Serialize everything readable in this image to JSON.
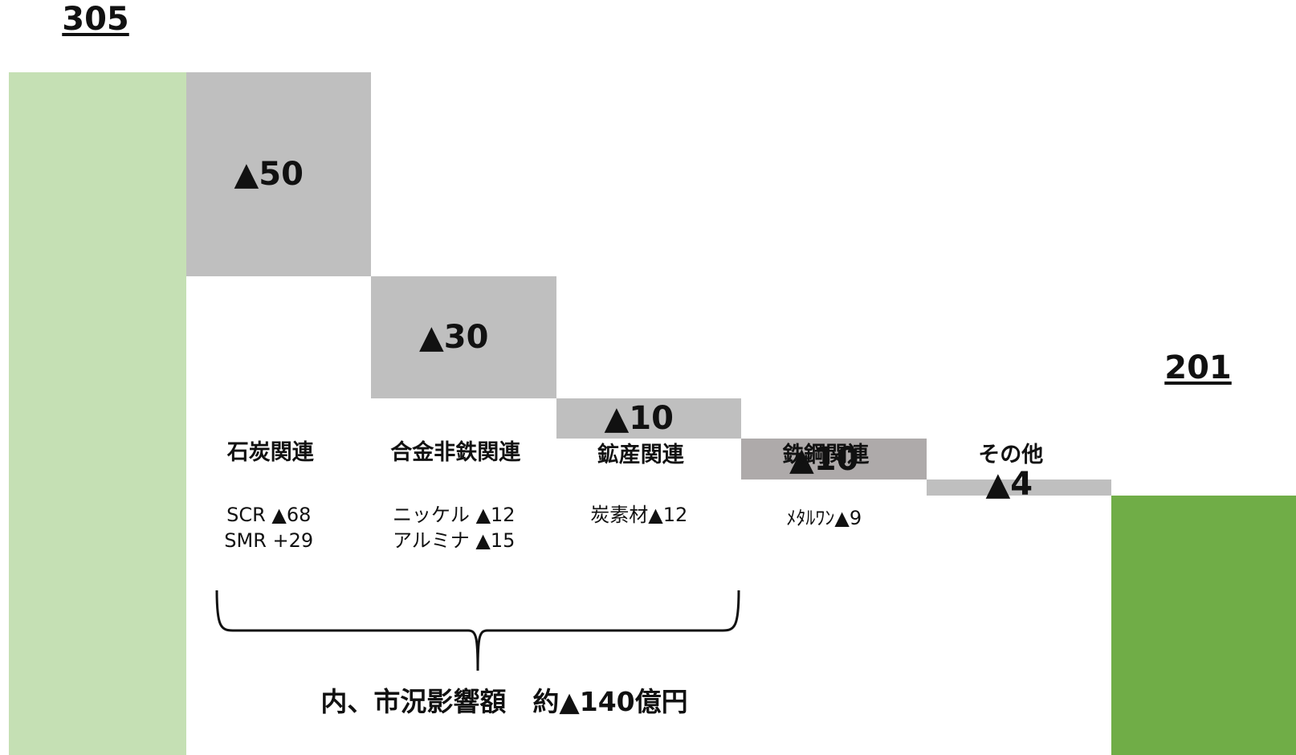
{
  "chart_data": {
    "type": "waterfall",
    "categories": [
      "",
      "石炭関連",
      "合金非鉄関連",
      "鉱産関連",
      "鉄鋼関連",
      "その他",
      ""
    ],
    "start_total": {
      "value": 305,
      "label": "305",
      "color": "#c5e0b4"
    },
    "steps": [
      {
        "category": "石炭関連",
        "delta": -50,
        "label": "▲50",
        "color": "#bfbfbf",
        "details": [
          "SCR ▲68",
          "SMR +29"
        ]
      },
      {
        "category": "合金非鉄関連",
        "delta": -30,
        "label": "▲30",
        "color": "#bfbfbf",
        "details": [
          "ニッケル ▲12",
          "アルミナ ▲15"
        ]
      },
      {
        "category": "鉱産関連",
        "delta": -10,
        "label": "▲10",
        "color": "#bfbfbf",
        "details": [
          "炭素材▲12"
        ]
      },
      {
        "category": "鉄鋼関連",
        "delta": -10,
        "label": "▲10",
        "color": "#aeaaaa",
        "details": [
          "ﾒﾀﾙﾜﾝ▲9"
        ]
      },
      {
        "category": "その他",
        "delta": -4,
        "label": "▲4",
        "color": "#bfbfbf",
        "details": []
      }
    ],
    "end_total": {
      "value": 201,
      "label": "201",
      "color": "#70ad47"
    },
    "annotation": {
      "text": "内、市況影響額　約▲140億円",
      "spans": [
        "石炭関連",
        "鉱産関連"
      ]
    }
  }
}
